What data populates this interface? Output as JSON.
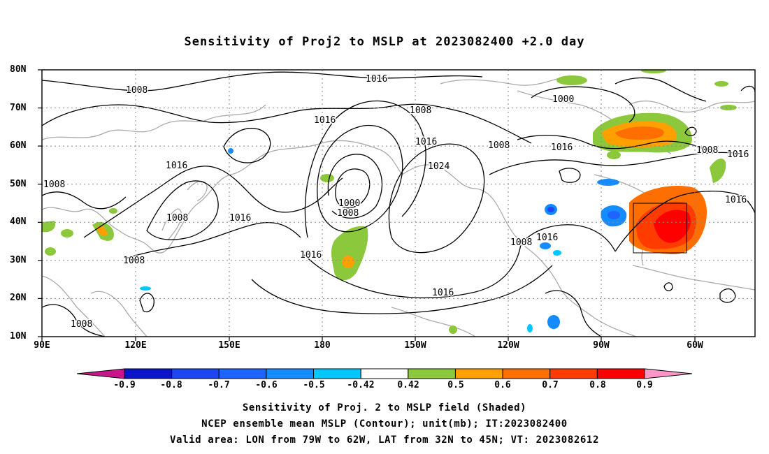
{
  "title": "Sensitivity of Proj2 to MSLP at 2023082400 +2.0 day",
  "lat_labels": [
    "80N",
    "70N",
    "60N",
    "50N",
    "40N",
    "30N",
    "20N",
    "10N"
  ],
  "lon_labels": [
    "90E",
    "120E",
    "150E",
    "180",
    "150W",
    "120W",
    "90W",
    "60W"
  ],
  "contour_labels": [
    "1008",
    "1016",
    "1016",
    "1008",
    "1016",
    "1000",
    "1008",
    "1016",
    "1024",
    "1008",
    "1016",
    "1016",
    "1008",
    "1016",
    "1008",
    "1000",
    "1008",
    "1016",
    "1016",
    "1008",
    "1016",
    "1008",
    "1016",
    "1008",
    "1008"
  ],
  "colorbar": {
    "labels": [
      "-0.9",
      "-0.8",
      "-0.7",
      "-0.6",
      "-0.5",
      "-0.42",
      "0.42",
      "0.5",
      "0.6",
      "0.7",
      "0.8",
      "0.9"
    ],
    "colors": [
      "#c8158c",
      "#0a14c8",
      "#1e46f0",
      "#1e64ff",
      "#148cff",
      "#00c8ff",
      "#ffffff",
      "#8cc83c",
      "#ffa000",
      "#ff6e00",
      "#ff3c00",
      "#ff0000",
      "#ff96c8"
    ]
  },
  "captions": [
    "Sensitivity of Proj. 2 to MSLP field (Shaded)",
    "NCEP ensemble mean MSLP (Contour); unit(mb); IT:2023082400",
    "Valid area: LON from 79W to 62W, LAT from 32N to 45N; VT: 2023082612"
  ],
  "colors": {
    "coast": "#aaaaaa",
    "contour": "#000000",
    "grid": "#888888"
  }
}
